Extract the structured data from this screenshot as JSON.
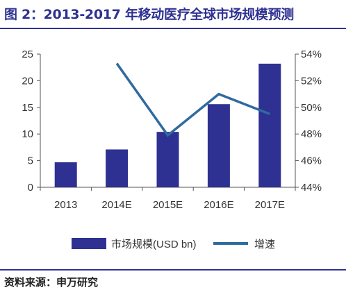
{
  "header": {
    "title": "图 2：2013-2017 年移动医疗全球市场规模预测"
  },
  "footer": {
    "source": "资料来源：申万研究"
  },
  "chart_data": {
    "type": "bar",
    "categories": [
      "2013",
      "2014E",
      "2015E",
      "2016E",
      "2017E"
    ],
    "series": [
      {
        "name": "市场规模(USD bn)",
        "type": "bar",
        "axis": "left",
        "values": [
          4.7,
          7.1,
          10.4,
          15.6,
          23.2
        ],
        "color": "#2e3192"
      },
      {
        "name": "增速",
        "type": "line",
        "axis": "right",
        "values": [
          null,
          53.3,
          47.9,
          51.0,
          49.5
        ],
        "color": "#2f6a9f"
      }
    ],
    "y_left": {
      "ylim": [
        0,
        25
      ],
      "ticks": [
        0,
        5,
        10,
        15,
        20,
        25
      ],
      "tick_labels": [
        "0",
        "5",
        "10",
        "15",
        "20",
        "25"
      ]
    },
    "y_right": {
      "ylim": [
        44,
        54
      ],
      "ticks": [
        44,
        46,
        48,
        50,
        52,
        54
      ],
      "tick_labels": [
        "44%",
        "46%",
        "48%",
        "50%",
        "52%",
        "54%"
      ]
    },
    "legend": {
      "placement": "bottom"
    },
    "grid": false
  }
}
